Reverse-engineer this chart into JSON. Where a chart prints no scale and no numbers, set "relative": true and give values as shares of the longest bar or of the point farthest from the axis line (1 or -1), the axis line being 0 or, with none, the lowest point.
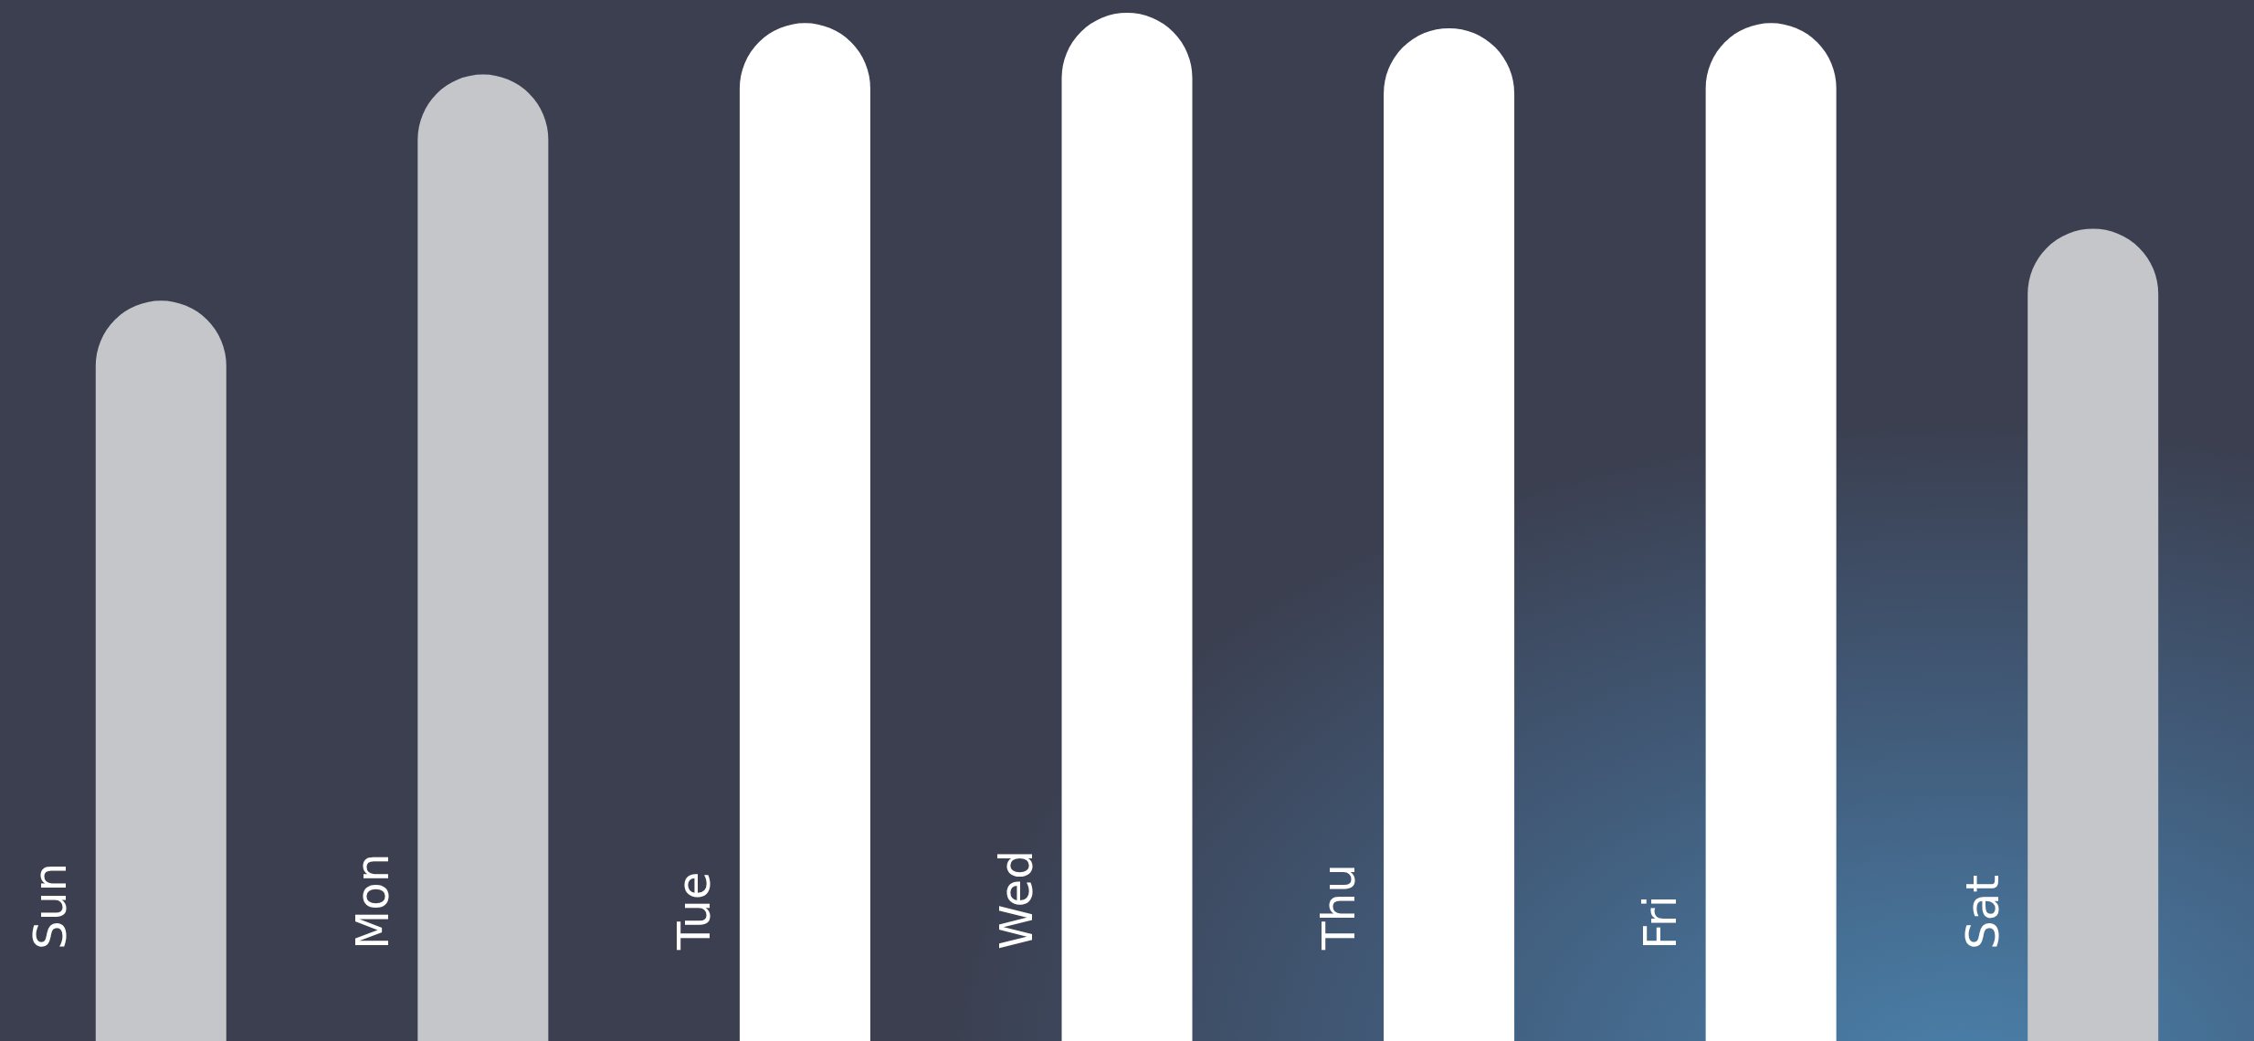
{
  "chart_data": {
    "type": "bar",
    "relative": true,
    "categories": [
      "Sun",
      "Mon",
      "Tue",
      "Wed",
      "Thu",
      "Fri",
      "Sat"
    ],
    "values": [
      0.72,
      0.94,
      0.99,
      1,
      0.985,
      0.99,
      0.79
    ],
    "colors": [
      "#c5c6ca",
      "#c5c6ca",
      "#ffffff",
      "#ffffff",
      "#ffffff",
      "#ffffff",
      "#c5c6ca"
    ]
  }
}
